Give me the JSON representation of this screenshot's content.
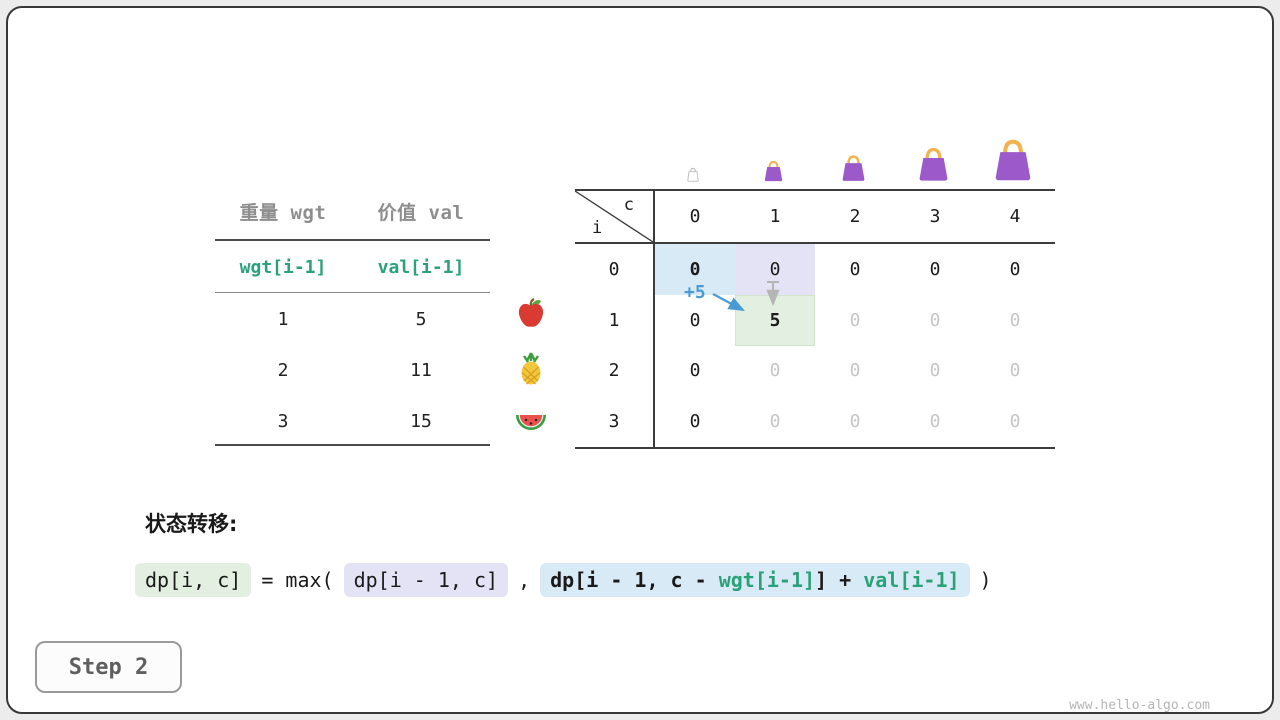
{
  "page": {
    "watermark": "www.hello-algo.com",
    "step_label": "Step 2"
  },
  "items_table": {
    "headers": [
      "重量 wgt",
      "价值 val"
    ],
    "formula_row": [
      "wgt[i-1]",
      "val[i-1]"
    ],
    "rows": [
      {
        "wgt": "1",
        "val": "5",
        "icon": "apple-icon"
      },
      {
        "wgt": "2",
        "val": "11",
        "icon": "pineapple-icon"
      },
      {
        "wgt": "3",
        "val": "15",
        "icon": "watermelon-icon"
      }
    ]
  },
  "dp_table": {
    "corner": {
      "row_var": "i",
      "col_var": "c"
    },
    "col_headers": [
      "0",
      "1",
      "2",
      "3",
      "4"
    ],
    "row_headers": [
      "0",
      "1",
      "2",
      "3"
    ],
    "bags": [
      {
        "style": "outline",
        "size": 16
      },
      {
        "style": "purple",
        "size": 23
      },
      {
        "style": "purple",
        "size": 29
      },
      {
        "style": "purple",
        "size": 37
      },
      {
        "style": "purple",
        "size": 46
      }
    ],
    "annotation": "+5",
    "cells": [
      [
        {
          "v": "0",
          "bold": true,
          "bg": "blue"
        },
        {
          "v": "0",
          "bg": "lavender"
        },
        {
          "v": "0"
        },
        {
          "v": "0"
        },
        {
          "v": "0"
        }
      ],
      [
        {
          "v": "0"
        },
        {
          "v": "5",
          "bold": true,
          "bg": "green"
        },
        {
          "v": "0",
          "gray": true
        },
        {
          "v": "0",
          "gray": true
        },
        {
          "v": "0",
          "gray": true
        }
      ],
      [
        {
          "v": "0"
        },
        {
          "v": "0",
          "gray": true
        },
        {
          "v": "0",
          "gray": true
        },
        {
          "v": "0",
          "gray": true
        },
        {
          "v": "0",
          "gray": true
        }
      ],
      [
        {
          "v": "0"
        },
        {
          "v": "0",
          "gray": true
        },
        {
          "v": "0",
          "gray": true
        },
        {
          "v": "0",
          "gray": true
        },
        {
          "v": "0",
          "gray": true
        }
      ]
    ]
  },
  "transition": {
    "label": "状态转移:",
    "lhs": "dp[i, c]",
    "equals_max": "= max(",
    "option1": "dp[i - 1, c]",
    "comma": ",",
    "option2_part1": "dp[i - 1, c - ",
    "option2_wgt": "wgt[i-1]",
    "option2_part2": "] + ",
    "option2_val": "val[i-1]",
    "close": ")"
  },
  "colors": {
    "green_text": "#2aa178",
    "highlight_green": "#e3efe0",
    "highlight_lavender": "#e4e3f6",
    "highlight_blue": "#d9eaf7",
    "arrow_blue": "#4a9ad4",
    "arrow_gray": "#b5b5b5",
    "muted_gray": "#c6c6c6",
    "bag_purple": "#9b59c9",
    "bag_handle": "#f0b34f"
  }
}
